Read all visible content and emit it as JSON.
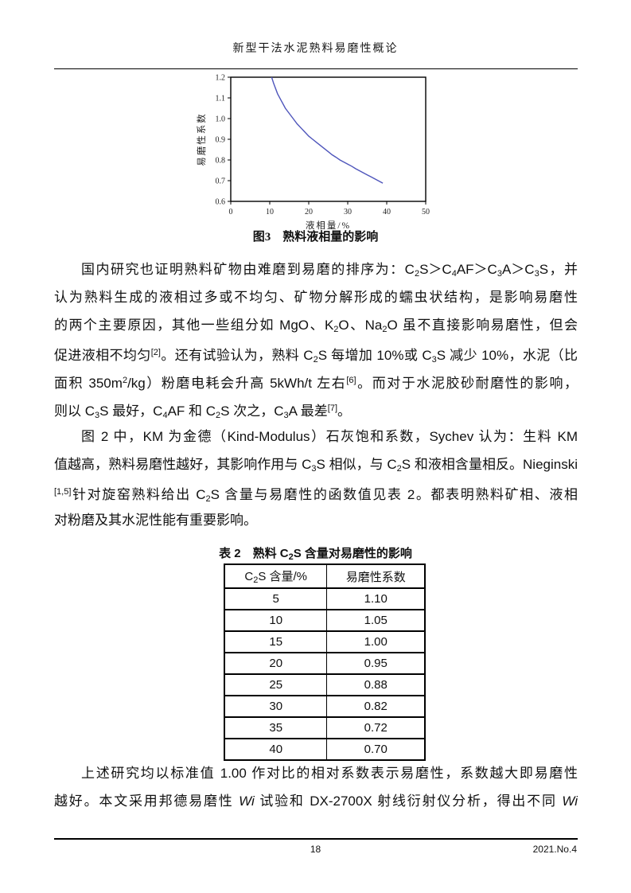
{
  "header": {
    "title": "新型干法水泥熟料易磨性概论"
  },
  "figure": {
    "caption": "图3　熟料液相量的影响"
  },
  "chart_data": {
    "type": "line",
    "title": "图3 熟料液相量的影响",
    "xlabel": "液相量/%",
    "ylabel": "易磨性系数",
    "xlim": [
      0,
      50
    ],
    "ylim": [
      0.6,
      1.2
    ],
    "xticks": [
      0,
      10,
      20,
      30,
      40,
      50
    ],
    "yticks": [
      0.6,
      0.7,
      0.8,
      0.9,
      1.0,
      1.1,
      1.2
    ],
    "grid": false,
    "legend": "none",
    "line_color": "#4e55bb",
    "series": [
      {
        "name": "易磨性系数",
        "points": [
          [
            10.5,
            1.2
          ],
          [
            11,
            1.17
          ],
          [
            12,
            1.12
          ],
          [
            13,
            1.085
          ],
          [
            14,
            1.05
          ],
          [
            15,
            1.025
          ],
          [
            16,
            1.0
          ],
          [
            17,
            0.975
          ],
          [
            18,
            0.955
          ],
          [
            19,
            0.935
          ],
          [
            20,
            0.915
          ],
          [
            21,
            0.9
          ],
          [
            22,
            0.885
          ],
          [
            23,
            0.87
          ],
          [
            24,
            0.855
          ],
          [
            25,
            0.84
          ],
          [
            26,
            0.825
          ],
          [
            27,
            0.813
          ],
          [
            28,
            0.8
          ],
          [
            29,
            0.79
          ],
          [
            30,
            0.78
          ],
          [
            31,
            0.77
          ],
          [
            32,
            0.758
          ],
          [
            33,
            0.748
          ],
          [
            34,
            0.738
          ],
          [
            35,
            0.728
          ],
          [
            36,
            0.718
          ],
          [
            37,
            0.708
          ],
          [
            38,
            0.698
          ],
          [
            39,
            0.688
          ]
        ]
      }
    ]
  },
  "paragraphs": [
    {
      "lines": [
        {
          "t": "国内研究也证明熟料矿物由难磨到易磨的排序为：C~2~S＞C~4~AF＞C~3~A＞C~3~S，并",
          "indent": true,
          "just": true
        },
        {
          "t": "认为熟料生成的液相过多或不均匀、矿物分解形成的蠕虫状结构，是影响易磨性",
          "just": true
        },
        {
          "t": "的两个主要原因，其他一些组分如 MgO、K~2~O、Na~2~O 虽不直接影响易磨性，但会",
          "just": true
        },
        {
          "t": "促进液相不均匀^[2]^。还有试验认为，熟料 C~2~S 每增加 10%或 C~3~S 减少 10%，水泥（比",
          "just": true
        },
        {
          "t": "面积 350m^2^/kg）粉磨电耗会升高 5kWh/t 左右^[6]^。而对于水泥胶砂耐磨性的影响，",
          "just": true
        },
        {
          "t": "则以 C~3~S 最好，C~4~AF 和  C~2~S 次之，C~3~A 最差^[7]^。",
          "just": false
        }
      ]
    },
    {
      "lines": [
        {
          "t": "图 2 中，KM 为金德（Kind-Modulus）石灰饱和系数，Sychev 认为：生料 KM",
          "indent": true,
          "just": true
        },
        {
          "t": "值越高，熟料易磨性越好，其影响作用与 C~3~S 相似，与 C~2~S 和液相含量相反。Nieginski",
          "just": true
        },
        {
          "t": "^[1,5]^针对旋窑熟料给出 C~2~S 含量与易磨性的函数值见表 2。都表明熟料矿相、液相",
          "just": true
        },
        {
          "t": "对粉磨及其水泥性能有重要影响。",
          "just": false
        }
      ]
    },
    {
      "lines": [
        {
          "t": "上述研究均以标准值 1.00 作对比的相对系数表示易磨性，系数越大即易磨性",
          "indent": true,
          "just": true
        },
        {
          "t": "越好。本文采用邦德易磨性 *Wi* 试验和 DX-2700X 射线衍射仪分析，得出不同 *Wi*",
          "just": true
        }
      ]
    }
  ],
  "table": {
    "title": "表 2　熟料 C~2~S 含量对易磨性的影响",
    "headers": [
      "C~2~S 含量/%",
      "易磨性系数"
    ],
    "rows": [
      [
        "5",
        "1.10"
      ],
      [
        "10",
        "1.05"
      ],
      [
        "15",
        "1.00"
      ],
      [
        "20",
        "0.95"
      ],
      [
        "25",
        "0.88"
      ],
      [
        "30",
        "0.82"
      ],
      [
        "35",
        "0.72"
      ],
      [
        "40",
        "0.70"
      ]
    ]
  },
  "footer": {
    "page_number": "18",
    "issue": "2021.No.4"
  }
}
